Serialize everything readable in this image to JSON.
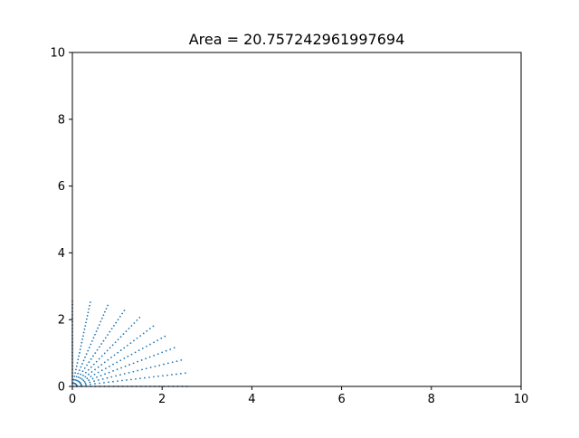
{
  "chart_data": {
    "type": "scatter",
    "title": "Area = 20.757242961997694",
    "xlabel": "",
    "ylabel": "",
    "xlim": [
      0,
      10
    ],
    "ylim": [
      0,
      10
    ],
    "xticks": [
      "0",
      "2",
      "4",
      "6",
      "8",
      "10"
    ],
    "yticks": [
      "0",
      "2",
      "4",
      "6",
      "8",
      "10"
    ],
    "grid": false,
    "legend": "none",
    "marker_color": "#1f77b4",
    "series": [
      {
        "description": "radial rays of small markers from the origin",
        "ray_angles_deg": [
          0,
          9,
          18,
          27,
          36,
          45,
          54,
          63,
          72,
          81,
          90
        ],
        "ray_max_radius": 2.55,
        "points_per_ray": 25
      }
    ]
  }
}
